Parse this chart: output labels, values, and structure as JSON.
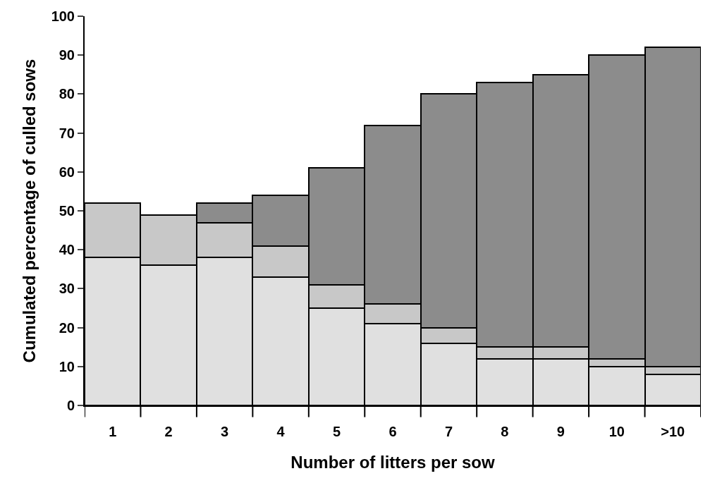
{
  "chart_data": {
    "type": "bar",
    "stacked": true,
    "xlabel": "Number of litters per sow",
    "ylabel": "Cumulated percentage of culled sows",
    "categories": [
      "1",
      "2",
      "3",
      "4",
      "5",
      "6",
      "7",
      "8",
      "9",
      "10",
      ">10"
    ],
    "series": [
      {
        "color": "#e0e0e0",
        "values": [
          38,
          36,
          38,
          33,
          25,
          21,
          16,
          12,
          12,
          10,
          8
        ]
      },
      {
        "color": "#c8c8c8",
        "values": [
          14,
          13,
          9,
          8,
          6,
          5,
          4,
          3,
          3,
          2,
          2
        ]
      },
      {
        "color": "#8c8c8c",
        "values": [
          null,
          null,
          5,
          13,
          30,
          46,
          60,
          68,
          70,
          78,
          82
        ]
      }
    ],
    "ylim": [
      0,
      100
    ],
    "yticks": [
      0,
      10,
      20,
      30,
      40,
      50,
      60,
      70,
      80,
      90,
      100
    ]
  }
}
